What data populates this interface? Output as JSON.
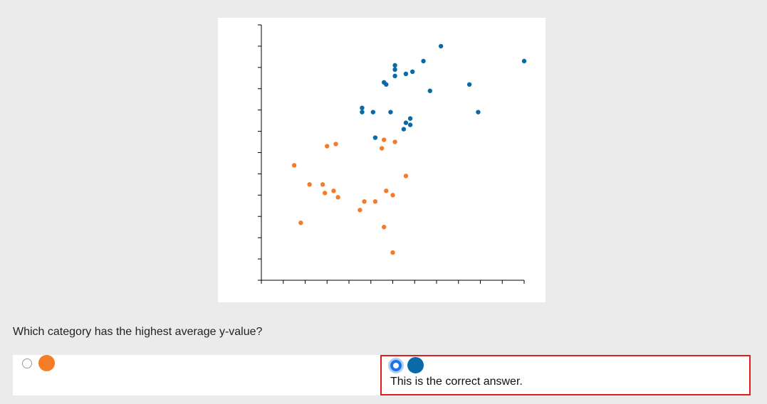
{
  "chart_data": {
    "type": "scatter",
    "series": [
      {
        "color": "#0a6aa8",
        "points": [
          [
            8.2,
            11.0
          ],
          [
            7.4,
            10.3
          ],
          [
            12.0,
            10.3
          ],
          [
            6.1,
            10.1
          ],
          [
            6.1,
            9.9
          ],
          [
            6.9,
            9.8
          ],
          [
            6.6,
            9.7
          ],
          [
            6.1,
            9.6
          ],
          [
            5.6,
            9.3
          ],
          [
            5.7,
            9.2
          ],
          [
            9.5,
            9.2
          ],
          [
            7.7,
            8.9
          ],
          [
            4.6,
            8.1
          ],
          [
            4.6,
            7.9
          ],
          [
            5.1,
            7.9
          ],
          [
            5.9,
            7.9
          ],
          [
            9.9,
            7.9
          ],
          [
            6.8,
            7.6
          ],
          [
            6.6,
            7.4
          ],
          [
            6.8,
            7.3
          ],
          [
            6.5,
            7.1
          ],
          [
            5.2,
            6.7
          ]
        ]
      },
      {
        "color": "#f47c26",
        "points": [
          [
            5.6,
            6.6
          ],
          [
            6.1,
            6.5
          ],
          [
            3.0,
            6.3
          ],
          [
            3.4,
            6.4
          ],
          [
            5.5,
            6.2
          ],
          [
            1.5,
            5.4
          ],
          [
            6.6,
            4.9
          ],
          [
            2.2,
            4.5
          ],
          [
            2.8,
            4.5
          ],
          [
            3.3,
            4.2
          ],
          [
            2.9,
            4.1
          ],
          [
            5.7,
            4.2
          ],
          [
            6.0,
            4.0
          ],
          [
            3.5,
            3.9
          ],
          [
            4.7,
            3.7
          ],
          [
            5.2,
            3.7
          ],
          [
            4.5,
            3.3
          ],
          [
            1.8,
            2.7
          ],
          [
            5.6,
            2.5
          ],
          [
            6.0,
            1.3
          ]
        ]
      }
    ],
    "xlim": [
      0,
      12
    ],
    "ylim": [
      0,
      12
    ],
    "x_ticks": [
      0,
      1,
      2,
      3,
      4,
      5,
      6,
      7,
      8,
      9,
      10,
      11,
      12
    ],
    "y_ticks": [
      0,
      1,
      2,
      3,
      4,
      5,
      6,
      7,
      8,
      9,
      10,
      11,
      12
    ],
    "grid": false,
    "legend": "none"
  },
  "question": {
    "text": "Which category has the highest average y-value?"
  },
  "options": [
    {
      "color": "#f47c26",
      "selected": false
    },
    {
      "color": "#0a6aa8",
      "selected": true,
      "feedback": "This is the correct answer."
    }
  ]
}
